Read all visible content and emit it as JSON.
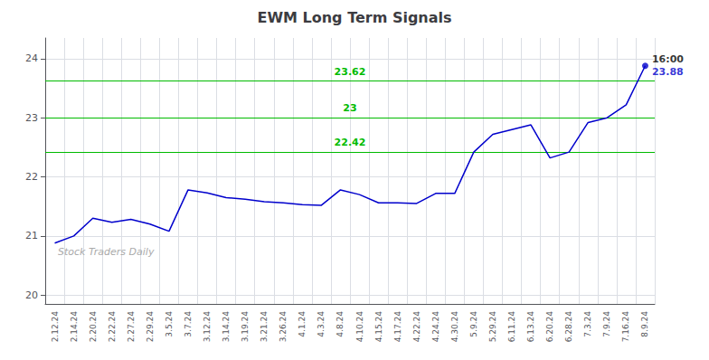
{
  "chart_data": {
    "type": "line",
    "title": "EWM Long Term Signals",
    "categories": [
      "2.12.24",
      "2.14.24",
      "2.20.24",
      "2.22.24",
      "2.27.24",
      "2.29.24",
      "3.5.24",
      "3.7.24",
      "3.12.24",
      "3.14.24",
      "3.19.24",
      "3.21.24",
      "3.26.24",
      "4.1.24",
      "4.3.24",
      "4.8.24",
      "4.10.24",
      "4.15.24",
      "4.17.24",
      "4.22.24",
      "4.24.24",
      "4.30.24",
      "5.9.24",
      "5.29.24",
      "6.11.24",
      "6.13.24",
      "6.20.24",
      "6.28.24",
      "7.3.24",
      "7.9.24",
      "7.16.24",
      "8.9.24"
    ],
    "values": [
      20.88,
      21.0,
      21.3,
      21.23,
      21.28,
      21.2,
      21.08,
      21.78,
      21.73,
      21.65,
      21.62,
      21.58,
      21.56,
      21.53,
      21.52,
      21.78,
      21.7,
      21.56,
      21.56,
      21.55,
      21.72,
      21.72,
      22.42,
      22.72,
      22.8,
      22.88,
      22.32,
      22.42,
      22.92,
      23.0,
      23.22,
      23.88
    ],
    "color": "#0000cc",
    "ylim": [
      19.85,
      24.35
    ],
    "yticks": [
      20,
      21,
      22,
      23,
      24
    ],
    "grid": true,
    "hlines": [
      {
        "y": 23.62,
        "label": "23.62",
        "color": "#00bb00"
      },
      {
        "y": 23.0,
        "label": "23",
        "color": "#00bb00"
      },
      {
        "y": 22.42,
        "label": "22.42",
        "color": "#00bb00"
      }
    ],
    "watermark": {
      "text": "Stock Traders Daily",
      "color": "#aaaaaa"
    },
    "last_point_labels": [
      {
        "text": "16:00",
        "color": "#000000"
      },
      {
        "text": "23.88",
        "color": "#0000cc"
      }
    ]
  }
}
